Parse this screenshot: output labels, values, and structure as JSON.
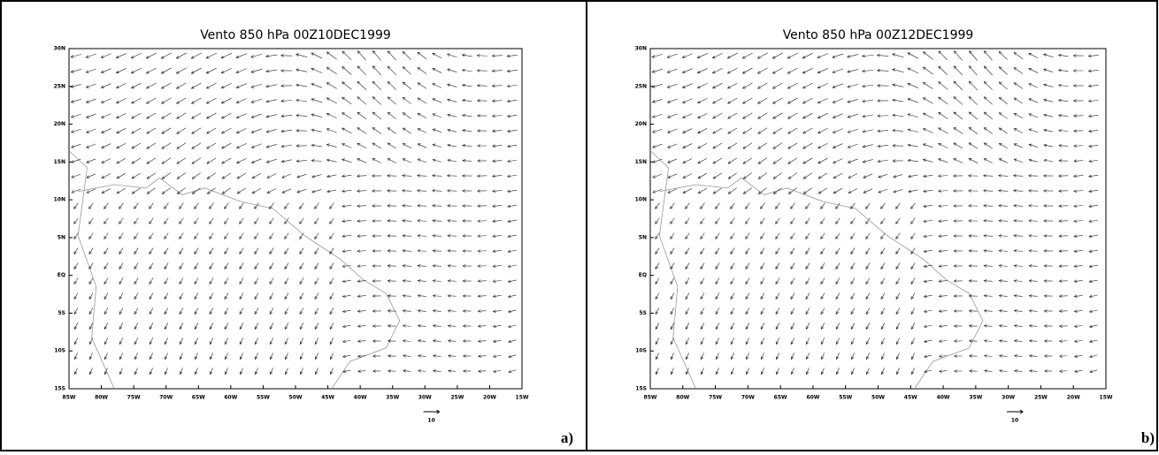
{
  "panels": [
    {
      "title": "Vento 850 hPa 00Z10DEC1999",
      "y_labels": [
        "30N",
        "25N",
        "20N",
        "15N",
        "10N",
        "5N",
        "EQ",
        "5S",
        "10S",
        "15S"
      ],
      "x_labels": [
        "85W",
        "80W",
        "75W",
        "70W",
        "65W",
        "60W",
        "55W",
        "50W",
        "45W",
        "40W",
        "35W",
        "30W",
        "25W",
        "20W",
        "15W"
      ],
      "reference_vector": "10",
      "label": "a)"
    },
    {
      "title": "Vento 850 hPa 00Z12DEC1999",
      "y_labels": [
        "30N",
        "25N",
        "20N",
        "15N",
        "10N",
        "5N",
        "EQ",
        "5S",
        "10S",
        "15S"
      ],
      "x_labels": [
        "85W",
        "80W",
        "75W",
        "70W",
        "65W",
        "60W",
        "55W",
        "50W",
        "45W",
        "40W",
        "35W",
        "30W",
        "25W",
        "20W",
        "15W"
      ],
      "reference_vector": "10",
      "label": "b)"
    }
  ]
}
